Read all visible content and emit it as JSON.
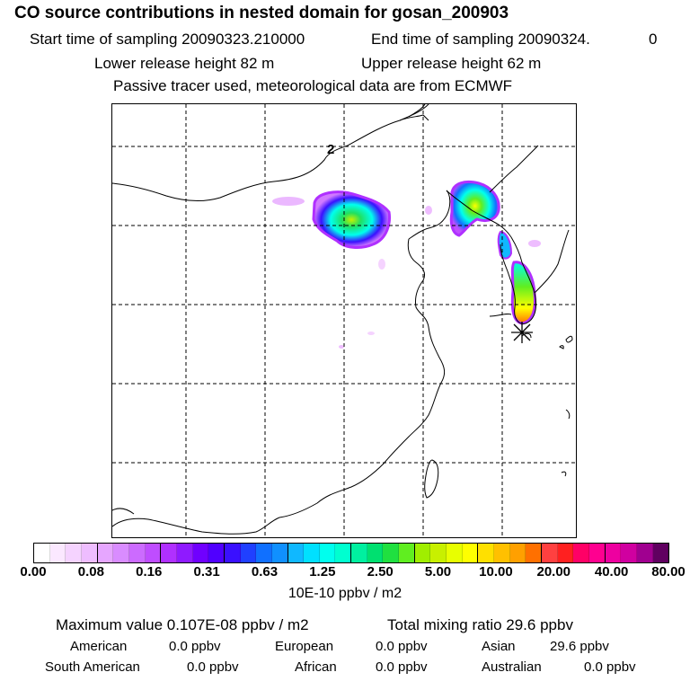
{
  "header": {
    "title": "CO  source contributions in nested domain for gosan_200903",
    "start_label": "Start time of sampling 20090323.210000",
    "end_label": "End time of sampling 20090324.",
    "end_value": "0",
    "lower_release": "Lower release height   82 m",
    "upper_release": "Upper release height   62 m",
    "tracer_note": "Passive tracer used, meteorological data are from ECMWF"
  },
  "map": {
    "contour_label": "2",
    "receptor_marker": "asterisk-marker"
  },
  "colorbar": {
    "colors": [
      "#ffffff",
      "#fbe8ff",
      "#f5d3ff",
      "#eebdff",
      "#e6a6ff",
      "#d98cff",
      "#cc6bff",
      "#bf4dff",
      "#b030ff",
      "#8f1aff",
      "#7000ff",
      "#5000ff",
      "#3a10ff",
      "#2040ff",
      "#1070ff",
      "#1090ff",
      "#10b8ff",
      "#00e0ff",
      "#00ffee",
      "#00ffd0",
      "#00f0a0",
      "#00e070",
      "#20e040",
      "#60ee20",
      "#a0ee00",
      "#c8f000",
      "#e8ff00",
      "#ffff00",
      "#ffe000",
      "#ffc000",
      "#ffa000",
      "#ff7000",
      "#ff4040",
      "#ff2020",
      "#ff0066",
      "#ff0090",
      "#ee00a0",
      "#d000a0",
      "#a00090",
      "#600060"
    ],
    "ticks": [
      "0.00",
      "0.08",
      "0.16",
      "0.31",
      "0.63",
      "1.25",
      "2.50",
      "5.00",
      "10.00",
      "20.00",
      "40.00",
      "80.00"
    ],
    "units": "10E-10 ppbv / m2"
  },
  "summary": {
    "max_value": "Maximum value  0.107E-08 ppbv / m2",
    "total_mixing": "Total mixing ratio       29.6 ppbv",
    "regions": [
      {
        "label": "American",
        "value": "0.0 ppbv"
      },
      {
        "label": "European",
        "value": "0.0 ppbv"
      },
      {
        "label": "Asian",
        "value": "29.6 ppbv"
      },
      {
        "label": "South American",
        "value": "0.0 ppbv"
      },
      {
        "label": "African",
        "value": "0.0 ppbv"
      },
      {
        "label": "Australian",
        "value": "0.0 ppbv"
      }
    ]
  }
}
